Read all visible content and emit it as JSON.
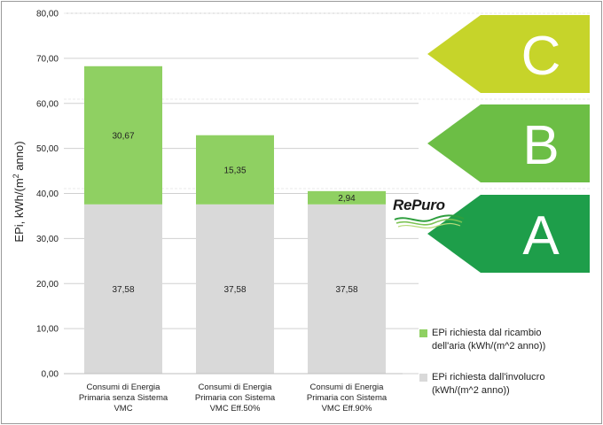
{
  "chart_data": {
    "type": "bar",
    "stacked": true,
    "categories": [
      [
        "Consumi di Energia",
        "Primaria senza Sistema",
        "VMC"
      ],
      [
        "Consumi di Energia",
        "Primaria con Sistema",
        "VMC Eff.50%"
      ],
      [
        "Consumi di Energia",
        "Primaria con Sistema",
        "VMC Eff.90%"
      ]
    ],
    "series": [
      {
        "name": "EPi richiesta dall'involucro (kWh/(m^2 anno))",
        "values": [
          37.58,
          37.58,
          37.58
        ],
        "labels": [
          "37,58",
          "37,58",
          "37,58"
        ],
        "color": "#d9d9d9"
      },
      {
        "name": "EPi richiesta dal ricambio dell'aria (kWh/(m^2 anno))",
        "values": [
          30.67,
          15.35,
          2.94
        ],
        "labels": [
          "30,67",
          "15,35",
          "2,94"
        ],
        "color": "#8fd062"
      }
    ],
    "ylabel": "EPi, kWh/(m2 anno)",
    "ylim": [
      0,
      80
    ],
    "yticks": [
      0,
      10,
      20,
      30,
      40,
      50,
      60,
      70,
      80
    ],
    "ytick_labels": [
      "0,00",
      "10,00",
      "20,00",
      "30,00",
      "40,00",
      "50,00",
      "60,00",
      "70,00",
      "80,00"
    ],
    "grid": true,
    "legend_position": "bottom-right"
  },
  "energy_classes": [
    {
      "label": "C",
      "color": "#c6d42a"
    },
    {
      "label": "B",
      "color": "#6cbe45"
    },
    {
      "label": "A",
      "color": "#1e9e4a"
    }
  ],
  "legend": {
    "items": [
      {
        "text_line1": "EPi richiesta dal ricambio",
        "text_line2": "dell'aria (kWh/(m^2 anno))",
        "color": "#8fd062"
      },
      {
        "text_line1": "EPi richiesta dall'involucro",
        "text_line2": "(kWh/(m^2 anno))",
        "color": "#d9d9d9"
      }
    ]
  },
  "brand": {
    "name": "RePuro"
  }
}
